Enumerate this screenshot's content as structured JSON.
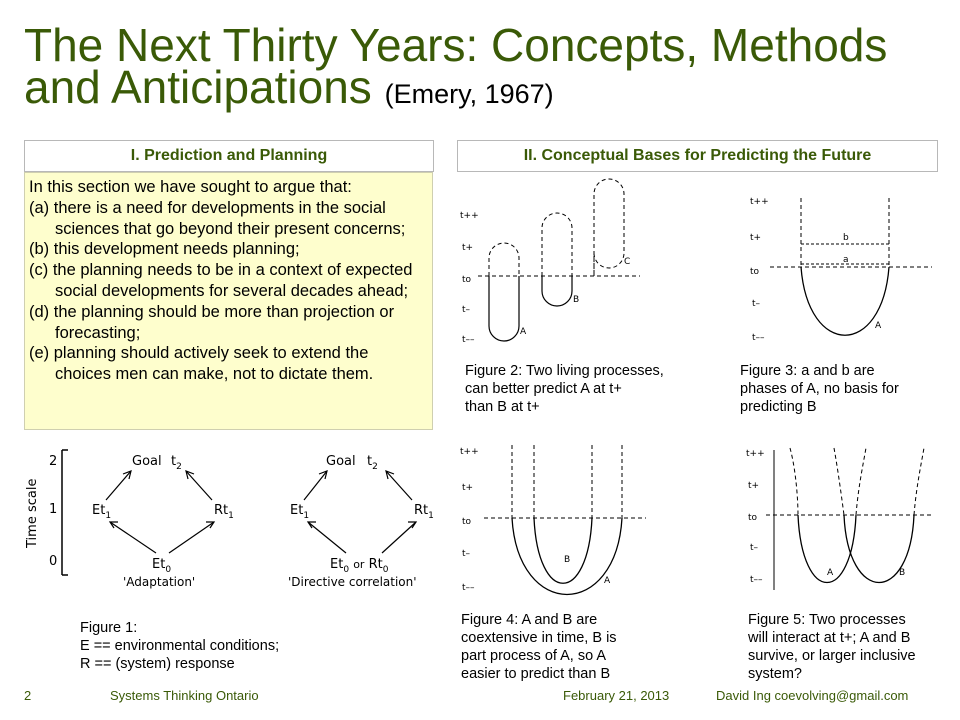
{
  "title": {
    "line1": "The Next Thirty Years: Concepts, Methods",
    "line2": "and Anticipations",
    "citation": "(Emery, 1967)"
  },
  "section1": {
    "heading": "I. Prediction and Planning",
    "intro": "In this section we have sought to argue that:",
    "items": [
      "(a) there is a need for developments in the social sciences that go beyond their present concerns;",
      "(b) this development needs planning;",
      "(c) the planning needs to be in a context of expected social developments for several decades ahead;",
      "(d) the planning should be more than projection or forecasting;",
      "(e) planning should actively seek to extend the choices men can make, not to dictate them."
    ]
  },
  "section2": {
    "heading": "II. Conceptual Bases for Predicting the Future"
  },
  "figure1": {
    "axis_label": "Time scale",
    "ticks": [
      "2",
      "1",
      "0"
    ],
    "goal": "Goal",
    "t2": "t",
    "t2_sub": "2",
    "et1": "Et",
    "sub1": "1",
    "rt1": "Rt",
    "et0": "Et",
    "sub0": "0",
    "or": "or",
    "rt0": "Rt",
    "label_left": "'Adaptation'",
    "label_right": "'Directive correlation'",
    "caption": "Figure 1:\nE == environmental conditions;\nR == (system) response"
  },
  "figure2": {
    "ylabels": [
      "t++",
      "t+",
      "to",
      "t–",
      "t––"
    ],
    "curves": [
      "A",
      "B",
      "C"
    ],
    "caption": "Figure 2:  Two living processes,\ncan better predict A at t+\nthan B at t+"
  },
  "figure3": {
    "ylabels": [
      "t++",
      "t+",
      "to",
      "t–",
      "t––"
    ],
    "lines": [
      "b",
      "a"
    ],
    "curve": "A",
    "caption": "Figure 3:  a and b are\nphases of A, no basis for\npredicting B"
  },
  "figure4": {
    "ylabels": [
      "t++",
      "t+",
      "to",
      "t–",
      "t––"
    ],
    "curves": [
      "B",
      "A"
    ],
    "caption": "Figure 4:  A and B are\ncoextensive in time, B is\npart process of A, so A\neasier to predict than B"
  },
  "figure5": {
    "ylabels": [
      "t++",
      "t+",
      "to",
      "t–",
      "t––"
    ],
    "curves": [
      "A",
      "B"
    ],
    "caption": "Figure 5:  Two processes\nwill interact at t+; A and B\nsurvive, or larger inclusive\nsystem?"
  },
  "footer": {
    "page": "2",
    "org": "Systems Thinking Ontario",
    "date": "February 21, 2013",
    "author": "David Ing coevolving@gmail.com"
  }
}
